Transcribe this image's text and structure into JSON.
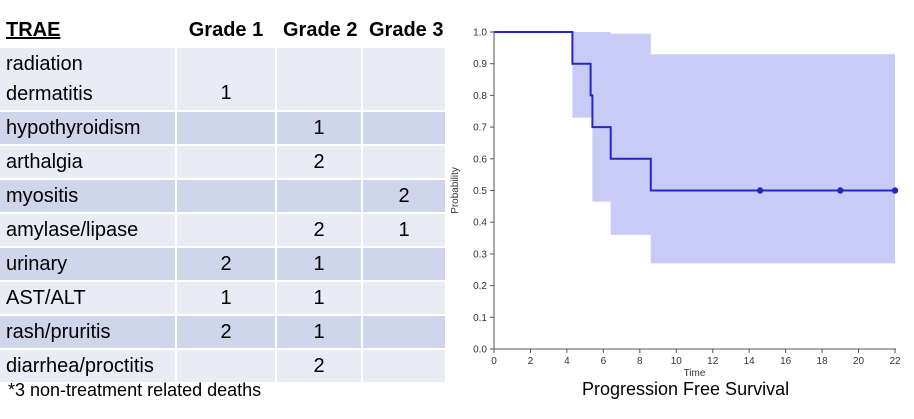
{
  "table": {
    "headers": [
      "TRAE",
      "Grade 1",
      "Grade 2",
      "Grade 3"
    ],
    "rows": [
      {
        "event": "radiation dermatitis",
        "g1": "1",
        "g2": "",
        "g3": ""
      },
      {
        "event": "hypothyroidism",
        "g1": "",
        "g2": "1",
        "g3": ""
      },
      {
        "event": "arthalgia",
        "g1": "",
        "g2": "2",
        "g3": ""
      },
      {
        "event": "myositis",
        "g1": "",
        "g2": "",
        "g3": "2"
      },
      {
        "event": "amylase/lipase",
        "g1": "",
        "g2": "2",
        "g3": "1"
      },
      {
        "event": "urinary",
        "g1": "2",
        "g2": "1",
        "g3": ""
      },
      {
        "event": "AST/ALT",
        "g1": "1",
        "g2": "1",
        "g3": ""
      },
      {
        "event": "rash/pruritis",
        "g1": "2",
        "g2": "1",
        "g3": ""
      },
      {
        "event": "diarrhea/proctitis",
        "g1": "",
        "g2": "2",
        "g3": ""
      }
    ],
    "colors": {
      "header_bg": "#ffffff",
      "row_light": "#e9ebf5",
      "row_dark": "#cfd5ea"
    }
  },
  "footnote": "*3 non-treatment related deaths",
  "chart_data": {
    "type": "line",
    "title": "Progression Free Survival",
    "xlabel": "Time",
    "ylabel": "Probability",
    "xlim": [
      0,
      22
    ],
    "ylim": [
      0,
      1.0
    ],
    "x_ticks": [
      0,
      2,
      4,
      6,
      8,
      10,
      12,
      14,
      16,
      18,
      20,
      22
    ],
    "y_ticks": [
      "0.0",
      "0.1",
      "0.2",
      "0.3",
      "0.4",
      "0.5",
      "0.6",
      "0.7",
      "0.8",
      "0.9",
      "1.0"
    ],
    "grid": false,
    "series": [
      {
        "step_x": [
          0,
          4.3,
          4.3,
          5.3,
          5.3,
          5.4,
          5.4,
          6.4,
          6.4,
          8.6,
          8.6,
          22
        ],
        "step_y": [
          1.0,
          1.0,
          0.9,
          0.9,
          0.8,
          0.8,
          0.7,
          0.7,
          0.6,
          0.6,
          0.5,
          0.5
        ],
        "censored_x": [
          14.6,
          19.0,
          22.0
        ],
        "censored_y": [
          0.5,
          0.5,
          0.5
        ],
        "ci_x": [
          0,
          4.3,
          5.4,
          6.4,
          8.6,
          22
        ],
        "ci_upper": [
          1.0,
          1.0,
          1.0,
          0.995,
          0.93,
          0.93
        ],
        "ci_lower": [
          1.0,
          0.73,
          0.465,
          0.36,
          0.27,
          0.27
        ]
      }
    ],
    "colors": {
      "line": "#2525c8",
      "band": "#c9cbf7",
      "axis": "#555555"
    }
  }
}
